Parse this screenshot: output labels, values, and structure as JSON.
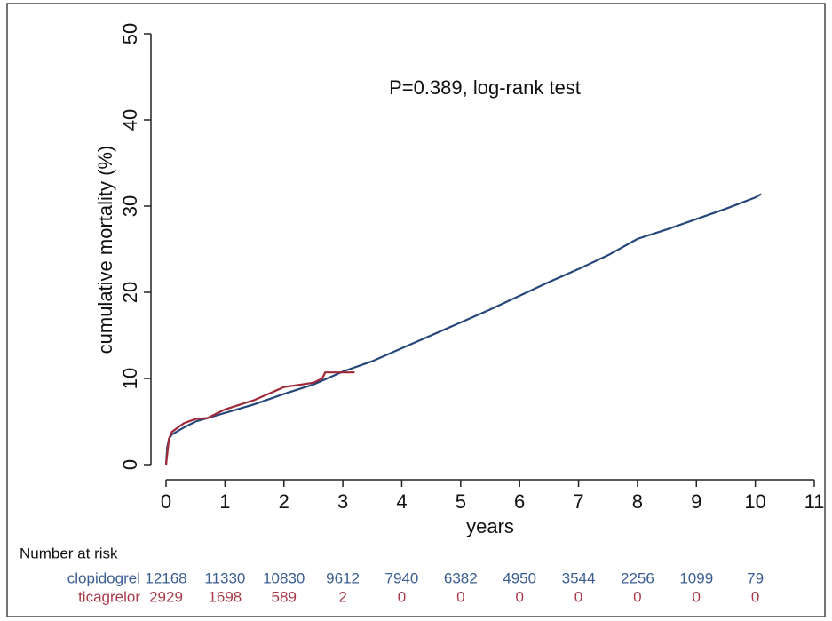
{
  "chart_data": {
    "type": "line",
    "x_label": "years",
    "y_label": "cumulative mortality (%)",
    "annotation": "P=0.389, log-rank test",
    "xlim": [
      0,
      11
    ],
    "ylim": [
      0,
      50
    ],
    "xticks": [
      0,
      1,
      2,
      3,
      4,
      5,
      6,
      7,
      8,
      9,
      10,
      11
    ],
    "yticks": [
      0,
      10,
      20,
      30,
      40,
      50
    ],
    "series": [
      {
        "name": "clopidogrel",
        "color": "#25477a",
        "x": [
          0,
          0.02,
          0.05,
          0.1,
          0.3,
          0.5,
          1,
          1.5,
          2,
          2.5,
          3,
          3.5,
          4,
          4.5,
          5,
          5.5,
          6,
          6.5,
          7,
          7.5,
          8,
          8.5,
          9,
          9.5,
          10,
          10.1
        ],
        "values": [
          0,
          2,
          3,
          3.5,
          4.3,
          5,
          6,
          7,
          8.2,
          9.3,
          10.8,
          12,
          13.5,
          15,
          16.5,
          18,
          19.6,
          21.2,
          22.7,
          24.3,
          26.2,
          27.3,
          28.5,
          29.7,
          31,
          31.4
        ]
      },
      {
        "name": "ticagrelor",
        "color": "#a02838",
        "x": [
          0,
          0.05,
          0.1,
          0.3,
          0.5,
          0.7,
          1,
          1.5,
          2,
          2.5,
          2.65,
          2.7,
          3,
          3.2
        ],
        "values": [
          0,
          3,
          3.8,
          4.8,
          5.3,
          5.4,
          6.4,
          7.5,
          9,
          9.5,
          10,
          10.7,
          10.7,
          10.7
        ]
      }
    ],
    "risk_table": {
      "title": "Number at risk",
      "rows": [
        {
          "name": "clopidogrel",
          "color": "#3a5d92",
          "values": [
            12168,
            11330,
            10830,
            9612,
            7940,
            6382,
            4950,
            3544,
            2256,
            1099,
            79
          ]
        },
        {
          "name": "ticagrelor",
          "color": "#a83a48",
          "values": [
            2929,
            1698,
            589,
            2,
            0,
            0,
            0,
            0,
            0,
            0,
            0
          ]
        }
      ]
    }
  }
}
